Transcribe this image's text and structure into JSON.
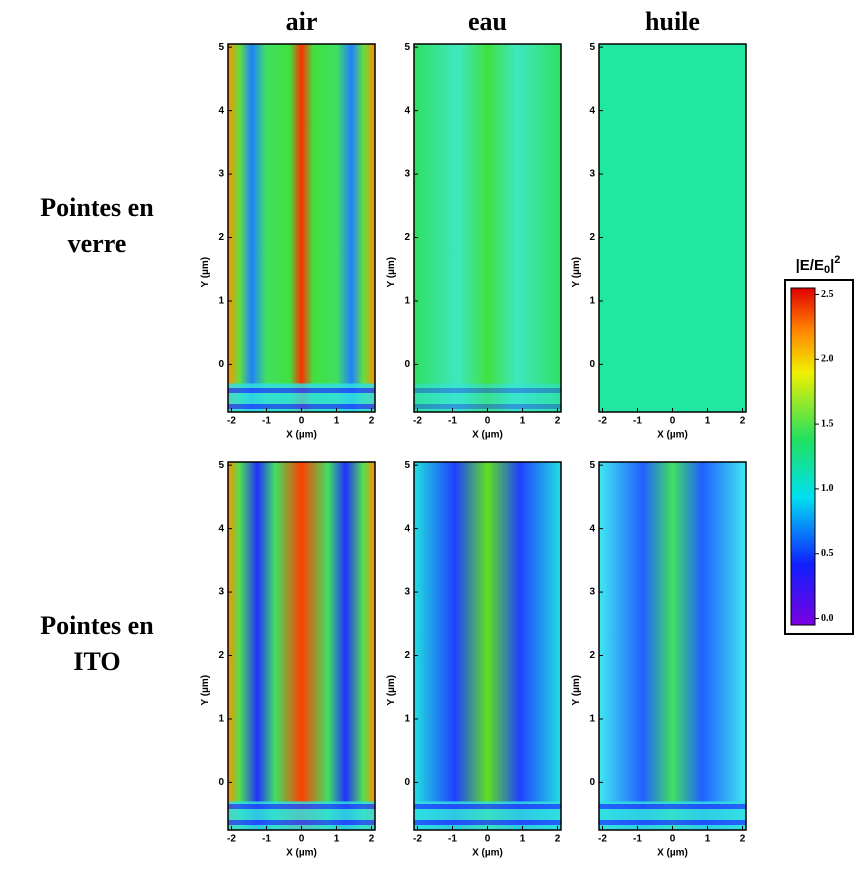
{
  "columns": [
    "air",
    "eau",
    "huile"
  ],
  "rows": [
    [
      "Pointes en",
      "verre"
    ],
    [
      "Pointes en",
      "ITO"
    ]
  ],
  "x_axis": {
    "label": "X (µm)",
    "ticks": [
      -2,
      -1,
      0,
      1,
      2
    ],
    "lim": [
      -2.1,
      2.1
    ]
  },
  "y_axis": {
    "label": "Y (µm)",
    "ticks": [
      0,
      1,
      2,
      3,
      4,
      5
    ],
    "lim": [
      -0.75,
      5.05
    ]
  },
  "colorbar": {
    "title_parts": [
      "|E/E",
      "0",
      "|",
      "2"
    ],
    "ticks": [
      {
        "value": 0,
        "label": "0.0"
      },
      {
        "value": 0.5,
        "label": "0.5"
      },
      {
        "value": 1,
        "label": "1.0"
      },
      {
        "value": 1.5,
        "label": "1.5"
      },
      {
        "value": 2,
        "label": "2.0"
      },
      {
        "value": 2.5,
        "label": "2.5"
      }
    ],
    "lim": [
      -0.05,
      2.55
    ]
  }
}
